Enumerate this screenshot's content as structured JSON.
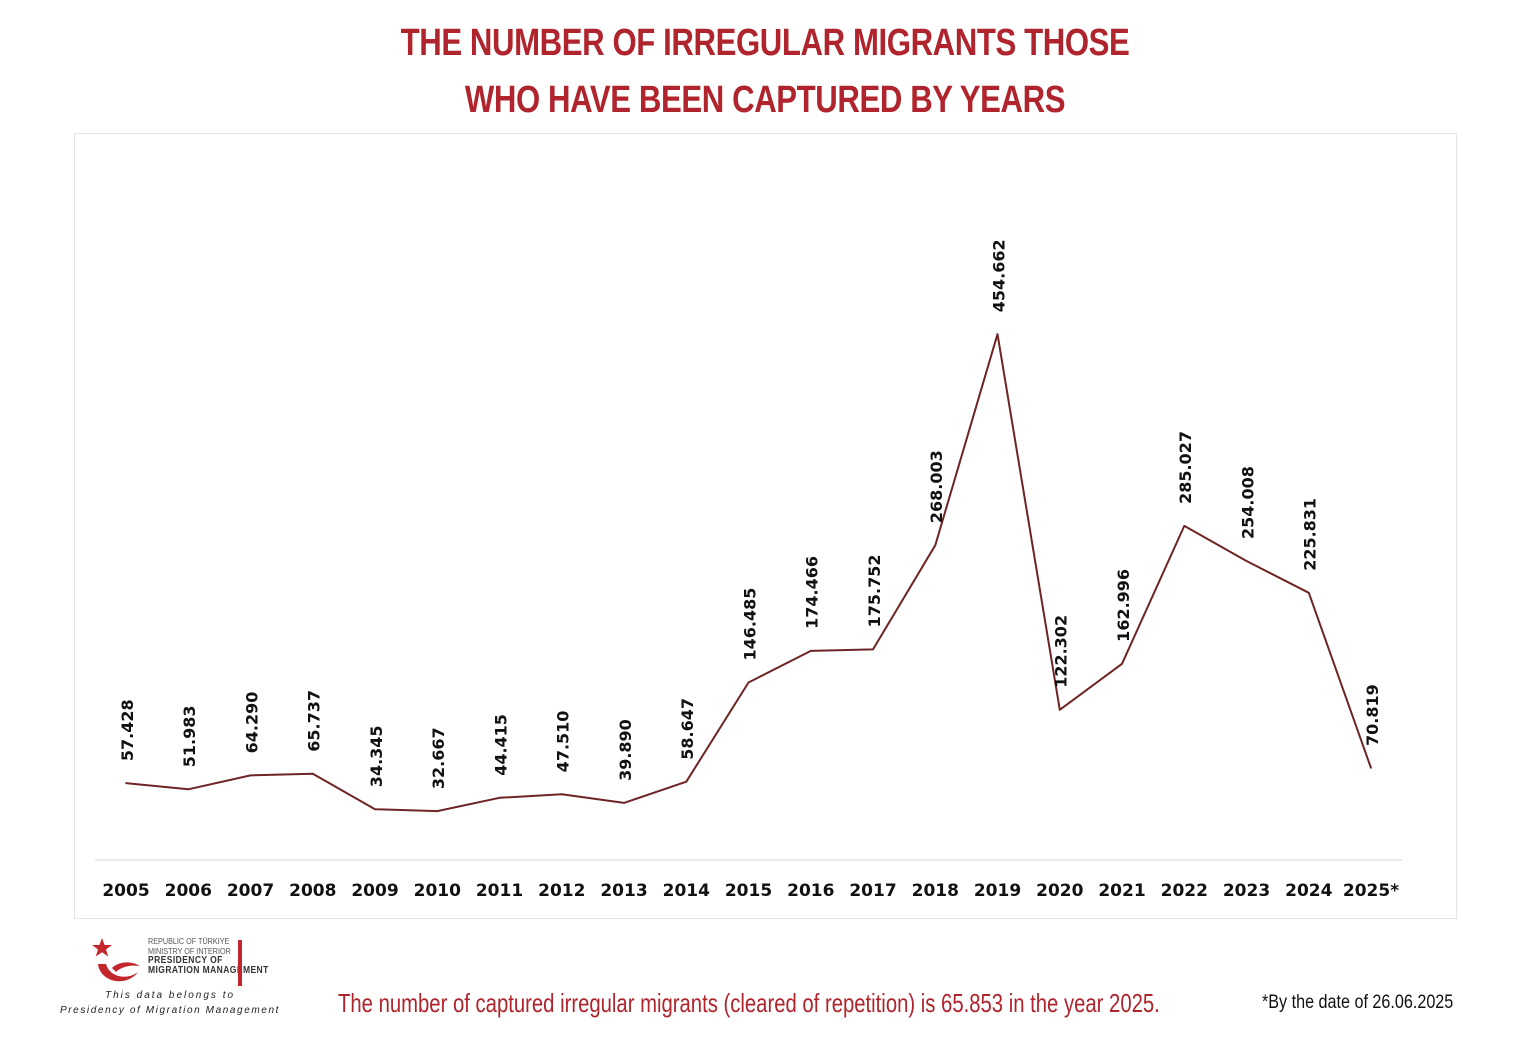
{
  "title_line1": "THE NUMBER OF IRREGULAR MIGRANTS THOSE",
  "title_line2": "WHO HAVE BEEN CAPTURED BY YEARS",
  "logo": {
    "line1": "REPUBLIC OF TÜRKIYE",
    "line2": "MINISTRY OF INTERIOR",
    "line3": "PRESIDENCY OF",
    "line4": "MIGRATION MANAGEMENT"
  },
  "belongs_line1": "This data belongs to",
  "belongs_line2": "Presidency of Migration Management",
  "footnote": "The number of captured irregular migrants (cleared of repetition) is 65.853 in the year 2025.",
  "date_note": "*By the date of  26.06.2025",
  "colors": {
    "title": "#b0252d",
    "line": "#6e2424",
    "axis": "#d9d9d9"
  },
  "chart_data": {
    "type": "line",
    "title": "THE NUMBER OF IRREGULAR MIGRANTS THOSE WHO HAVE BEEN CAPTURED BY YEARS",
    "categories": [
      "2005",
      "2006",
      "2007",
      "2008",
      "2009",
      "2010",
      "2011",
      "2012",
      "2013",
      "2014",
      "2015",
      "2016",
      "2017",
      "2018",
      "2019",
      "2020",
      "2021",
      "2022",
      "2023",
      "2024",
      "2025*"
    ],
    "series": [
      {
        "values": [
          57428,
          51983,
          64290,
          65737,
          34345,
          32667,
          44415,
          47510,
          39890,
          58647,
          146485,
          174466,
          175752,
          268003,
          454662,
          122302,
          162996,
          285027,
          254008,
          225831,
          70819
        ],
        "labels": [
          "57.428",
          "51.983",
          "64.290",
          "65.737",
          "34.345",
          "32.667",
          "44.415",
          "47.510",
          "39.890",
          "58.647",
          "146.485",
          "174.466",
          "175.752",
          "268.003",
          "454.662",
          "122.302",
          "162.996",
          "285.027",
          "254.008",
          "225.831",
          "70.819"
        ]
      }
    ],
    "ylim": [
      0,
      500000
    ],
    "grid": false,
    "legend": "none"
  }
}
